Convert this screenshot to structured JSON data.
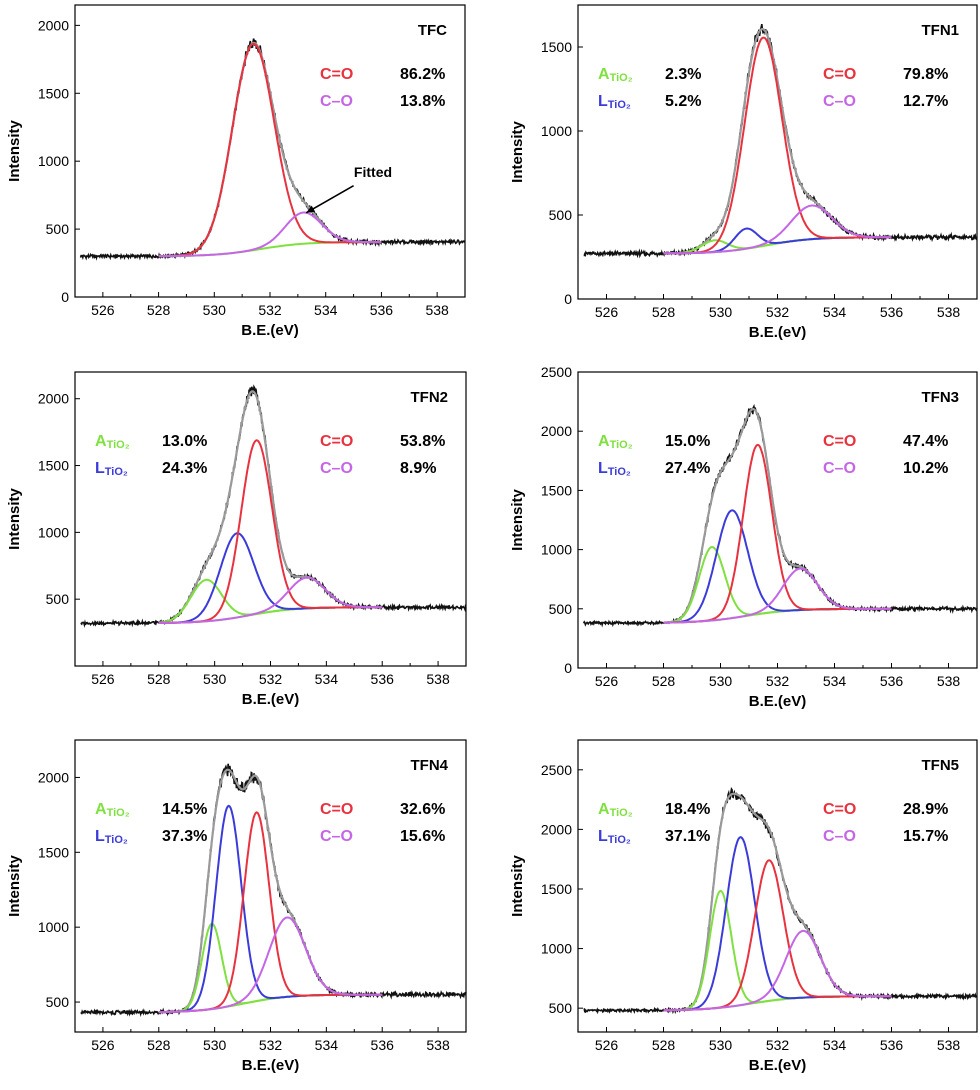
{
  "colors": {
    "experimental": "#111111",
    "envelope": "#9a9a9a",
    "background": "#7fe040",
    "peak_A": "#7fe040",
    "peak_L": "#3b3bd9",
    "peak_CO_double": "#e8323f",
    "peak_CO_single": "#c566e6"
  },
  "chart_data": [
    {
      "type": "line",
      "panel_title": "TFC",
      "xlabel": "B.E.(eV)",
      "ylabel": "Intensity",
      "xlim": [
        525,
        539
      ],
      "ylim": [
        0,
        2150
      ],
      "x_ticks": [
        526,
        528,
        530,
        532,
        534,
        536,
        538
      ],
      "y_ticks": [
        0,
        500,
        1000,
        1500,
        2000
      ],
      "baseline": 300,
      "fit_range": [
        528,
        536
      ],
      "peaks": [
        {
          "key": "CO_double",
          "center": 531.4,
          "height": 1520,
          "width": 0.75
        },
        {
          "key": "CO_single",
          "center": 533.2,
          "height": 230,
          "width": 0.65
        }
      ],
      "legend": [
        {
          "key": "CO_double",
          "label": "C=O",
          "value": "86.2%"
        },
        {
          "key": "CO_single",
          "label": "C–O",
          "value": "13.8%"
        }
      ],
      "annotation": {
        "text": "Fitted"
      }
    },
    {
      "type": "line",
      "panel_title": "TFN1",
      "xlabel": "B.E.(eV)",
      "ylabel": "Intensity",
      "xlim": [
        525,
        539
      ],
      "ylim": [
        0,
        1750
      ],
      "x_ticks": [
        526,
        528,
        530,
        532,
        534,
        536,
        538
      ],
      "y_ticks": [
        0,
        500,
        1000,
        1500
      ],
      "baseline": 270,
      "fit_range": [
        528,
        536
      ],
      "peaks": [
        {
          "key": "A",
          "center": 529.8,
          "height": 70,
          "width": 0.45
        },
        {
          "key": "L",
          "center": 530.9,
          "height": 120,
          "width": 0.4
        },
        {
          "key": "CO_double",
          "center": 531.5,
          "height": 1240,
          "width": 0.65
        },
        {
          "key": "CO_single",
          "center": 533.2,
          "height": 200,
          "width": 0.7
        }
      ],
      "legend": [
        {
          "key": "A",
          "label": "A",
          "sub": "TiO₂",
          "value": "2.3%"
        },
        {
          "key": "L",
          "label": "L",
          "sub": "TiO₂",
          "value": "5.2%"
        },
        {
          "key": "CO_double",
          "label": "C=O",
          "value": "79.8%"
        },
        {
          "key": "CO_single",
          "label": "C–O",
          "value": "12.7%"
        }
      ]
    },
    {
      "type": "line",
      "panel_title": "TFN2",
      "xlabel": "B.E.(eV)",
      "ylabel": "Intensity",
      "xlim": [
        525,
        539
      ],
      "ylim": [
        0,
        2200
      ],
      "x_ticks": [
        526,
        528,
        530,
        532,
        534,
        536,
        538
      ],
      "y_ticks": [
        500,
        1000,
        1500,
        2000
      ],
      "baseline": 320,
      "fit_range": [
        528,
        536
      ],
      "peaks": [
        {
          "key": "A",
          "center": 529.7,
          "height": 310,
          "width": 0.55
        },
        {
          "key": "L",
          "center": 530.8,
          "height": 630,
          "width": 0.6
        },
        {
          "key": "CO_double",
          "center": 531.5,
          "height": 1300,
          "width": 0.55
        },
        {
          "key": "CO_single",
          "center": 533.3,
          "height": 230,
          "width": 0.65
        }
      ],
      "legend": [
        {
          "key": "A",
          "label": "A",
          "sub": "TiO₂",
          "value": "13.0%"
        },
        {
          "key": "L",
          "label": "L",
          "sub": "TiO₂",
          "value": "24.3%"
        },
        {
          "key": "CO_double",
          "label": "C=O",
          "value": "53.8%"
        },
        {
          "key": "CO_single",
          "label": "C–O",
          "value": "8.9%"
        }
      ]
    },
    {
      "type": "line",
      "panel_title": "TFN3",
      "xlabel": "B.E.(eV)",
      "ylabel": "Intensity",
      "xlim": [
        525,
        539
      ],
      "ylim": [
        0,
        2500
      ],
      "x_ticks": [
        526,
        528,
        530,
        532,
        534,
        536,
        538
      ],
      "y_ticks": [
        0,
        500,
        1000,
        1500,
        2000,
        2500
      ],
      "baseline": 380,
      "fit_range": [
        528,
        536
      ],
      "peaks": [
        {
          "key": "A",
          "center": 529.7,
          "height": 620,
          "width": 0.45
        },
        {
          "key": "L",
          "center": 530.4,
          "height": 910,
          "width": 0.55
        },
        {
          "key": "CO_double",
          "center": 531.3,
          "height": 1430,
          "width": 0.5
        },
        {
          "key": "CO_single",
          "center": 532.8,
          "height": 350,
          "width": 0.6
        }
      ],
      "legend": [
        {
          "key": "A",
          "label": "A",
          "sub": "TiO₂",
          "value": "15.0%"
        },
        {
          "key": "L",
          "label": "L",
          "sub": "TiO₂",
          "value": "27.4%"
        },
        {
          "key": "CO_double",
          "label": "C=O",
          "value": "47.4%"
        },
        {
          "key": "CO_single",
          "label": "C–O",
          "value": "10.2%"
        }
      ]
    },
    {
      "type": "line",
      "panel_title": "TFN4",
      "xlabel": "B.E.(eV)",
      "ylabel": "Intensity",
      "xlim": [
        525,
        539
      ],
      "ylim": [
        300,
        2250
      ],
      "x_ticks": [
        526,
        528,
        530,
        532,
        534,
        536,
        538
      ],
      "y_ticks": [
        500,
        1000,
        1500,
        2000
      ],
      "baseline": 430,
      "fit_range": [
        528,
        536
      ],
      "peaks": [
        {
          "key": "A",
          "center": 529.9,
          "height": 570,
          "width": 0.35
        },
        {
          "key": "L",
          "center": 530.5,
          "height": 1340,
          "width": 0.45
        },
        {
          "key": "CO_double",
          "center": 531.5,
          "height": 1260,
          "width": 0.45
        },
        {
          "key": "CO_single",
          "center": 532.6,
          "height": 530,
          "width": 0.65
        }
      ],
      "legend": [
        {
          "key": "A",
          "label": "A",
          "sub": "TiO₂",
          "value": "14.5%"
        },
        {
          "key": "L",
          "label": "L",
          "sub": "TiO₂",
          "value": "37.3%"
        },
        {
          "key": "CO_double",
          "label": "C=O",
          "value": "32.6%"
        },
        {
          "key": "CO_single",
          "label": "C–O",
          "value": "15.6%"
        }
      ]
    },
    {
      "type": "line",
      "panel_title": "TFN5",
      "xlabel": "B.E.(eV)",
      "ylabel": "Intensity",
      "xlim": [
        525,
        539
      ],
      "ylim": [
        300,
        2750
      ],
      "x_ticks": [
        526,
        528,
        530,
        532,
        534,
        536,
        538
      ],
      "y_ticks": [
        500,
        1000,
        1500,
        2000,
        2500
      ],
      "baseline": 480,
      "fit_range": [
        528,
        536
      ],
      "peaks": [
        {
          "key": "A",
          "center": 530.0,
          "height": 980,
          "width": 0.38
        },
        {
          "key": "L",
          "center": 530.7,
          "height": 1410,
          "width": 0.5
        },
        {
          "key": "CO_double",
          "center": 531.7,
          "height": 1180,
          "width": 0.5
        },
        {
          "key": "CO_single",
          "center": 532.9,
          "height": 560,
          "width": 0.6
        }
      ],
      "legend": [
        {
          "key": "A",
          "label": "A",
          "sub": "TiO₂",
          "value": "18.4%"
        },
        {
          "key": "L",
          "label": "L",
          "sub": "TiO₂",
          "value": "37.1%"
        },
        {
          "key": "CO_double",
          "label": "C=O",
          "value": "28.9%"
        },
        {
          "key": "CO_single",
          "label": "C–O",
          "value": "15.7%"
        }
      ]
    }
  ]
}
